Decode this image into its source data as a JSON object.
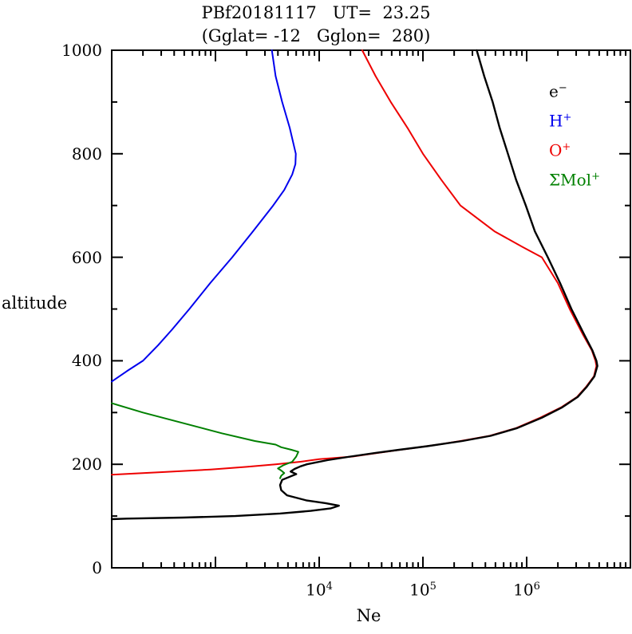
{
  "header": {
    "title": "PBf20181117   UT=  23.25",
    "subtitle": "(Gglat= -12   Gglon=  280)"
  },
  "axes": {
    "x_label": "Ne",
    "y_label": "altitude",
    "y_ticks": [
      "1000",
      "800",
      "600",
      "400",
      "200",
      "0"
    ],
    "x_ticks": [
      {
        "base": "10",
        "exp": "4"
      },
      {
        "base": "10",
        "exp": "5"
      },
      {
        "base": "10",
        "exp": "6"
      }
    ]
  },
  "legend": {
    "items": [
      {
        "base": "e",
        "sup": "−",
        "color": "#000000"
      },
      {
        "base": "H",
        "sup": "+",
        "color": "#0000ee"
      },
      {
        "base": "O",
        "sup": "+",
        "color": "#ee0000"
      },
      {
        "base": "ΣMol",
        "sup": "+",
        "color": "#008000"
      }
    ]
  },
  "chart_data": {
    "type": "line",
    "title": "PBf20181117  UT= 23.25 (Gglat= -12  Gglon= 280)",
    "xlabel": "Ne",
    "ylabel": "altitude",
    "x_scale": "log",
    "xlim": [
      100,
      10000000
    ],
    "ylim": [
      0,
      1000
    ],
    "grid": false,
    "legend_position": "upper right inside",
    "x_major_ticks_labeled": [
      10000,
      100000,
      1000000
    ],
    "y_major_ticks": [
      0,
      200,
      400,
      600,
      800,
      1000
    ],
    "series": [
      {
        "id": "h-plus",
        "name": "H+",
        "color": "#0000ee",
        "points": [
          [
            100,
            360
          ],
          [
            140,
            380
          ],
          [
            200,
            400
          ],
          [
            280,
            430
          ],
          [
            380,
            460
          ],
          [
            560,
            500
          ],
          [
            890,
            550
          ],
          [
            1450,
            600
          ],
          [
            2300,
            650
          ],
          [
            3600,
            700
          ],
          [
            4600,
            730
          ],
          [
            5500,
            760
          ],
          [
            5900,
            780
          ],
          [
            5950,
            800
          ],
          [
            5200,
            850
          ],
          [
            4400,
            900
          ],
          [
            3800,
            950
          ],
          [
            3500,
            1000
          ]
        ]
      },
      {
        "id": "o-plus",
        "name": "O+",
        "color": "#ee0000",
        "points": [
          [
            100,
            180
          ],
          [
            160,
            182
          ],
          [
            320,
            185
          ],
          [
            900,
            190
          ],
          [
            2000,
            195
          ],
          [
            3800,
            200
          ],
          [
            6600,
            205
          ],
          [
            10000,
            210
          ],
          [
            21000,
            215
          ],
          [
            37000,
            222
          ],
          [
            72000,
            230
          ],
          [
            140000,
            238
          ],
          [
            230000,
            245
          ],
          [
            440000,
            255
          ],
          [
            790000,
            270
          ],
          [
            1350000,
            290
          ],
          [
            2150000,
            310
          ],
          [
            3050000,
            330
          ],
          [
            3750000,
            350
          ],
          [
            4450000,
            370
          ],
          [
            4700000,
            390
          ],
          [
            4600000,
            400
          ],
          [
            4250000,
            420
          ],
          [
            3500000,
            450
          ],
          [
            2600000,
            500
          ],
          [
            2000000,
            550
          ],
          [
            1400000,
            600
          ],
          [
            910000,
            620
          ],
          [
            490000,
            650
          ],
          [
            230000,
            700
          ],
          [
            150000,
            750
          ],
          [
            100000,
            800
          ],
          [
            71000,
            850
          ],
          [
            49000,
            900
          ],
          [
            35000,
            950
          ],
          [
            26000,
            1000
          ]
        ]
      },
      {
        "id": "mol-plus",
        "name": "ΣMol+",
        "color": "#008000",
        "points": [
          [
            4200,
            173
          ],
          [
            4300,
            178
          ],
          [
            4600,
            183
          ],
          [
            4300,
            188
          ],
          [
            4000,
            192
          ],
          [
            4500,
            198
          ],
          [
            5500,
            205
          ],
          [
            6000,
            215
          ],
          [
            6300,
            224
          ],
          [
            5400,
            228
          ],
          [
            4300,
            233
          ],
          [
            3800,
            238
          ],
          [
            2400,
            245
          ],
          [
            1150,
            260
          ],
          [
            480,
            280
          ],
          [
            200,
            300
          ],
          [
            100,
            318
          ]
        ]
      },
      {
        "id": "electron",
        "name": "e-",
        "color": "#000000",
        "points": [
          [
            100,
            94
          ],
          [
            140,
            95
          ],
          [
            490,
            97
          ],
          [
            1550,
            100
          ],
          [
            4200,
            105
          ],
          [
            8300,
            110
          ],
          [
            13000,
            115
          ],
          [
            15500,
            120
          ],
          [
            11500,
            125
          ],
          [
            7600,
            130
          ],
          [
            4900,
            140
          ],
          [
            4300,
            150
          ],
          [
            4200,
            160
          ],
          [
            4400,
            170
          ],
          [
            5200,
            176
          ],
          [
            6000,
            181
          ],
          [
            5300,
            186
          ],
          [
            5800,
            191
          ],
          [
            6600,
            196
          ],
          [
            7600,
            200
          ],
          [
            12000,
            208
          ],
          [
            20000,
            215
          ],
          [
            35000,
            222
          ],
          [
            59000,
            228
          ],
          [
            110000,
            235
          ],
          [
            240000,
            245
          ],
          [
            450000,
            255
          ],
          [
            810000,
            270
          ],
          [
            1400000,
            290
          ],
          [
            2200000,
            310
          ],
          [
            3100000,
            330
          ],
          [
            3800000,
            350
          ],
          [
            4500000,
            370
          ],
          [
            4800000,
            390
          ],
          [
            4700000,
            400
          ],
          [
            4300000,
            420
          ],
          [
            3600000,
            450
          ],
          [
            2700000,
            500
          ],
          [
            2100000,
            550
          ],
          [
            1600000,
            600
          ],
          [
            1200000,
            650
          ],
          [
            980000,
            700
          ],
          [
            790000,
            750
          ],
          [
            660000,
            800
          ],
          [
            550000,
            850
          ],
          [
            470000,
            900
          ],
          [
            390000,
            950
          ],
          [
            330000,
            1000
          ]
        ]
      }
    ]
  }
}
